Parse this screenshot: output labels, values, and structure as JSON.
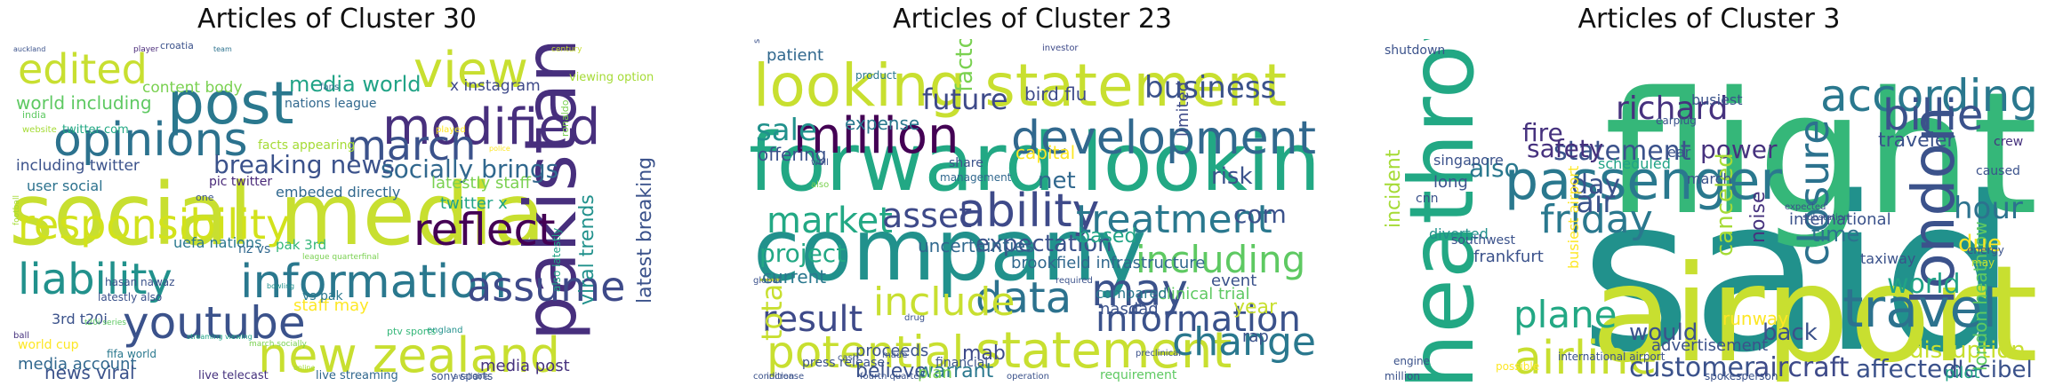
{
  "panels": [
    {
      "title": "Articles of Cluster 30",
      "words": [
        {
          "text": "social media",
          "color": "#c8df30"
        },
        {
          "text": "pakistan",
          "color": "#472f7d"
        },
        {
          "text": "post",
          "color": "#2a788e"
        },
        {
          "text": "new zealand",
          "color": "#c8df30"
        },
        {
          "text": "modified",
          "color": "#472f7d"
        },
        {
          "text": "information",
          "color": "#2a788e"
        },
        {
          "text": "reflect",
          "color": "#440154"
        },
        {
          "text": "youtube",
          "color": "#3b528b"
        },
        {
          "text": "opinions",
          "color": "#2c728e"
        },
        {
          "text": "march",
          "color": "#3b528b"
        },
        {
          "text": "responsibility",
          "color": "#d2e21b"
        },
        {
          "text": "liability",
          "color": "#21918c"
        },
        {
          "text": "assume",
          "color": "#3e4a89"
        },
        {
          "text": "edited",
          "color": "#c8df30"
        },
        {
          "text": "view",
          "color": "#c8df30"
        },
        {
          "text": "breaking news",
          "color": "#3b528b"
        },
        {
          "text": "socially brings",
          "color": "#31688e"
        },
        {
          "text": "latest breaking",
          "color": "#3b528b"
        },
        {
          "text": "viral trends",
          "color": "#21918c"
        },
        {
          "text": "media world",
          "color": "#20a386"
        },
        {
          "text": "x instagram",
          "color": "#3e4989"
        },
        {
          "text": "world including",
          "color": "#5ec962"
        },
        {
          "text": "including twitter",
          "color": "#3b528b"
        },
        {
          "text": "nations league",
          "color": "#31688e"
        },
        {
          "text": "content body",
          "color": "#7ad151"
        },
        {
          "text": "facts appearing",
          "color": "#a5db36"
        },
        {
          "text": "embeded directly",
          "color": "#31688e"
        },
        {
          "text": "latestly staff",
          "color": "#7ad151"
        },
        {
          "text": "twitter x",
          "color": "#20a386"
        },
        {
          "text": "media account",
          "color": "#31688e"
        },
        {
          "text": "news viral",
          "color": "#3b528b"
        },
        {
          "text": "staff may",
          "color": "#fde725"
        },
        {
          "text": "media post",
          "color": "#46327e"
        },
        {
          "text": "twitter com",
          "color": "#22a884"
        },
        {
          "text": "pic twitter",
          "color": "#482878"
        },
        {
          "text": "user social",
          "color": "#2c728e"
        },
        {
          "text": "uefa nations",
          "color": "#2a788e"
        },
        {
          "text": "pak 3rd",
          "color": "#35b779"
        },
        {
          "text": "3rd t20i",
          "color": "#3b528b"
        },
        {
          "text": "also latestly",
          "color": "#20a386"
        },
        {
          "text": "latestly also",
          "color": "#3b528b"
        },
        {
          "text": "nz vs",
          "color": "#31688e"
        },
        {
          "text": "vs pak",
          "color": "#2a788e"
        },
        {
          "text": "world cup",
          "color": "#fde725"
        },
        {
          "text": "fifa world",
          "color": "#2a788e"
        },
        {
          "text": "live telecast",
          "color": "#46327e"
        },
        {
          "text": "live streaming",
          "color": "#31688e"
        },
        {
          "text": "sony sports",
          "color": "#3b528b"
        },
        {
          "text": "viewing option",
          "color": "#a5db36"
        },
        {
          "text": "croatia",
          "color": "#3b528b"
        },
        {
          "text": "india",
          "color": "#5ec962"
        },
        {
          "text": "hasan nawaz",
          "color": "#3b528b"
        },
        {
          "text": "england",
          "color": "#21918c"
        },
        {
          "text": "ptv sports",
          "color": "#35b779"
        },
        {
          "text": "ronaldo",
          "color": "#7ad151"
        },
        {
          "text": "one",
          "color": "#3b528b"
        },
        {
          "text": "fans",
          "color": "#31688e"
        },
        {
          "text": "player",
          "color": "#482878"
        },
        {
          "text": "website",
          "color": "#a5db36"
        },
        {
          "text": "played",
          "color": "#fde725"
        },
        {
          "text": "league quarterfinal",
          "color": "#7ad151"
        },
        {
          "text": "march socially",
          "color": "#7ad151"
        },
        {
          "text": "available",
          "color": "#3b528b"
        },
        {
          "text": "streaming viewing",
          "color": "#20a386"
        },
        {
          "text": "t20i series",
          "color": "#5ec962"
        },
        {
          "text": "online",
          "color": "#a5db36"
        },
        {
          "text": "police",
          "color": "#fde725"
        },
        {
          "text": "football",
          "color": "#a5db36"
        },
        {
          "text": "ball",
          "color": "#46327e"
        },
        {
          "text": "team",
          "color": "#2c728e"
        },
        {
          "text": "auckland",
          "color": "#3b528b"
        },
        {
          "text": "century",
          "color": "#c8df30"
        },
        {
          "text": "bowling",
          "color": "#21918c"
        }
      ]
    },
    {
      "title": "Articles of Cluster 23",
      "words": [
        {
          "text": "company",
          "color": "#21918c"
        },
        {
          "text": "forward looking",
          "color": "#22a884"
        },
        {
          "text": "looking statement",
          "color": "#c8df30"
        },
        {
          "text": "million",
          "color": "#440154"
        },
        {
          "text": "development",
          "color": "#31688e"
        },
        {
          "text": "ability",
          "color": "#3e4a89"
        },
        {
          "text": "statement",
          "color": "#c8df30"
        },
        {
          "text": "potential",
          "color": "#c8df30"
        },
        {
          "text": "information",
          "color": "#3b528b"
        },
        {
          "text": "result",
          "color": "#3e4a89"
        },
        {
          "text": "data",
          "color": "#2c728e"
        },
        {
          "text": "may",
          "color": "#3b528b"
        },
        {
          "text": "treatment",
          "color": "#2a788e"
        },
        {
          "text": "including",
          "color": "#5ec962"
        },
        {
          "text": "business",
          "color": "#3b528b"
        },
        {
          "text": "market",
          "color": "#22a884"
        },
        {
          "text": "include",
          "color": "#c8df30"
        },
        {
          "text": "change",
          "color": "#2a788e"
        },
        {
          "text": "asset",
          "color": "#3e4a89"
        },
        {
          "text": "future",
          "color": "#3e4a89"
        },
        {
          "text": "sale",
          "color": "#21918c"
        },
        {
          "text": "expectation",
          "color": "#3b528b"
        },
        {
          "text": "project",
          "color": "#22a884"
        },
        {
          "text": "total",
          "color": "#c8df30"
        },
        {
          "text": "net",
          "color": "#31688e"
        },
        {
          "text": "risk",
          "color": "#3b528b"
        },
        {
          "text": "com",
          "color": "#3b528b"
        },
        {
          "text": "based",
          "color": "#20a386"
        },
        {
          "text": "bird flu",
          "color": "#3e4a89"
        },
        {
          "text": "expense",
          "color": "#2a788e"
        },
        {
          "text": "offering",
          "color": "#3b528b"
        },
        {
          "text": "capital",
          "color": "#fde725"
        },
        {
          "text": "current",
          "color": "#2a788e"
        },
        {
          "text": "uncertainties",
          "color": "#31688e"
        },
        {
          "text": "brookfield infrastructure",
          "color": "#31688e"
        },
        {
          "text": "clinical trial",
          "color": "#5ec962"
        },
        {
          "text": "compared",
          "color": "#2a788e"
        },
        {
          "text": "nasdaq",
          "color": "#3b528b"
        },
        {
          "text": "event",
          "color": "#3b528b"
        },
        {
          "text": "year",
          "color": "#c8df30"
        },
        {
          "text": "rap",
          "color": "#3b528b"
        },
        {
          "text": "mab",
          "color": "#3e4a89"
        },
        {
          "text": "warrant",
          "color": "#2a788e"
        },
        {
          "text": "believe",
          "color": "#3b528b"
        },
        {
          "text": "proceeds",
          "color": "#3b528b"
        },
        {
          "text": "plan",
          "color": "#7ad151"
        },
        {
          "text": "press release",
          "color": "#3b528b"
        },
        {
          "text": "limited",
          "color": "#3e4a89"
        },
        {
          "text": "patient",
          "color": "#31688e"
        },
        {
          "text": "factor",
          "color": "#7ad151"
        },
        {
          "text": "financial",
          "color": "#3b528b"
        },
        {
          "text": "requirement",
          "color": "#5ec962"
        },
        {
          "text": "fourth quarter",
          "color": "#3b528b"
        },
        {
          "text": "share",
          "color": "#3b528b"
        },
        {
          "text": "management",
          "color": "#31688e"
        },
        {
          "text": "product",
          "color": "#2a788e"
        },
        {
          "text": "operation",
          "color": "#3b528b"
        },
        {
          "text": "increase",
          "color": "#3b528b"
        },
        {
          "text": "global",
          "color": "#3b528b"
        },
        {
          "text": "also",
          "color": "#7ad151"
        },
        {
          "text": "drug",
          "color": "#3b528b"
        },
        {
          "text": "investor",
          "color": "#3e4a89"
        },
        {
          "text": "securities",
          "color": "#3b528b"
        },
        {
          "text": "condition",
          "color": "#3b528b"
        },
        {
          "text": "well",
          "color": "#3b528b"
        },
        {
          "text": "made",
          "color": "#3b528b"
        },
        {
          "text": "cash",
          "color": "#3b528b"
        },
        {
          "text": "required",
          "color": "#3b528b"
        },
        {
          "text": "preclinical",
          "color": "#3b528b"
        }
      ]
    },
    {
      "title": "Articles of Cluster 3",
      "words": [
        {
          "text": "said",
          "color": "#21918c"
        },
        {
          "text": "flight",
          "color": "#35b779"
        },
        {
          "text": "airport",
          "color": "#c8df30"
        },
        {
          "text": "heathrow",
          "color": "#22a884"
        },
        {
          "text": "passenger",
          "color": "#2a788e"
        },
        {
          "text": "london",
          "color": "#3b528b"
        },
        {
          "text": "travel",
          "color": "#2c728e"
        },
        {
          "text": "airline",
          "color": "#c8df30"
        },
        {
          "text": "friday",
          "color": "#2a788e"
        },
        {
          "text": "plane",
          "color": "#22a884"
        },
        {
          "text": "according",
          "color": "#2a788e"
        },
        {
          "text": "richard",
          "color": "#46327e"
        },
        {
          "text": "billie",
          "color": "#3b528b"
        },
        {
          "text": "statement",
          "color": "#3b528b"
        },
        {
          "text": "power",
          "color": "#46327e"
        },
        {
          "text": "fire",
          "color": "#46327e"
        },
        {
          "text": "also",
          "color": "#2a788e"
        },
        {
          "text": "safety",
          "color": "#46327e"
        },
        {
          "text": "air",
          "color": "#3b528b"
        },
        {
          "text": "day",
          "color": "#3b528b"
        },
        {
          "text": "closure",
          "color": "#2c728e"
        },
        {
          "text": "hour",
          "color": "#2c728e"
        },
        {
          "text": "world",
          "color": "#20a386"
        },
        {
          "text": "disruption",
          "color": "#c8df30"
        },
        {
          "text": "aircraft",
          "color": "#3e4a89"
        },
        {
          "text": "customer",
          "color": "#3b528b"
        },
        {
          "text": "would",
          "color": "#3b528b"
        },
        {
          "text": "back",
          "color": "#3b528b"
        },
        {
          "text": "affected",
          "color": "#3b528b"
        },
        {
          "text": "decibel",
          "color": "#3b528b"
        },
        {
          "text": "london heathrow",
          "color": "#5ec962"
        },
        {
          "text": "incident",
          "color": "#a5db36"
        },
        {
          "text": "canceled",
          "color": "#a5db36"
        },
        {
          "text": "noise",
          "color": "#46327e"
        },
        {
          "text": "traveler",
          "color": "#3b528b"
        },
        {
          "text": "time",
          "color": "#2c728e"
        },
        {
          "text": "international",
          "color": "#3b528b"
        },
        {
          "text": "due",
          "color": "#fde725"
        },
        {
          "text": "busiest airport",
          "color": "#fde725"
        },
        {
          "text": "frankfurt",
          "color": "#3b528b"
        },
        {
          "text": "diverted",
          "color": "#21918c"
        },
        {
          "text": "runway",
          "color": "#fde725"
        },
        {
          "text": "taxiway",
          "color": "#3b528b"
        },
        {
          "text": "advertisement",
          "color": "#3b528b"
        },
        {
          "text": "pilot",
          "color": "#20a386"
        },
        {
          "text": "crew",
          "color": "#46327e"
        },
        {
          "text": "caused",
          "color": "#3b528b"
        },
        {
          "text": "shutdown",
          "color": "#3b528b"
        },
        {
          "text": "busiest",
          "color": "#3b528b"
        },
        {
          "text": "scheduled",
          "color": "#20a386"
        },
        {
          "text": "long",
          "color": "#3b528b"
        },
        {
          "text": "singapore",
          "color": "#3b528b"
        },
        {
          "text": "march",
          "color": "#3b528b"
        },
        {
          "text": "energy",
          "color": "#3b528b"
        },
        {
          "text": "may",
          "color": "#c8df30"
        },
        {
          "text": "cnn",
          "color": "#3b528b"
        },
        {
          "text": "southwest",
          "color": "#3b528b"
        },
        {
          "text": "international airport",
          "color": "#3b528b"
        },
        {
          "text": "ear",
          "color": "#3b528b"
        },
        {
          "text": "earplug",
          "color": "#3b528b"
        },
        {
          "text": "engine",
          "color": "#3b528b"
        },
        {
          "text": "million",
          "color": "#3b528b"
        },
        {
          "text": "spokesperson",
          "color": "#3b528b"
        },
        {
          "text": "expected",
          "color": "#3b528b"
        },
        {
          "text": "substation",
          "color": "#3b528b"
        },
        {
          "text": "possible",
          "color": "#fde725"
        }
      ]
    }
  ]
}
